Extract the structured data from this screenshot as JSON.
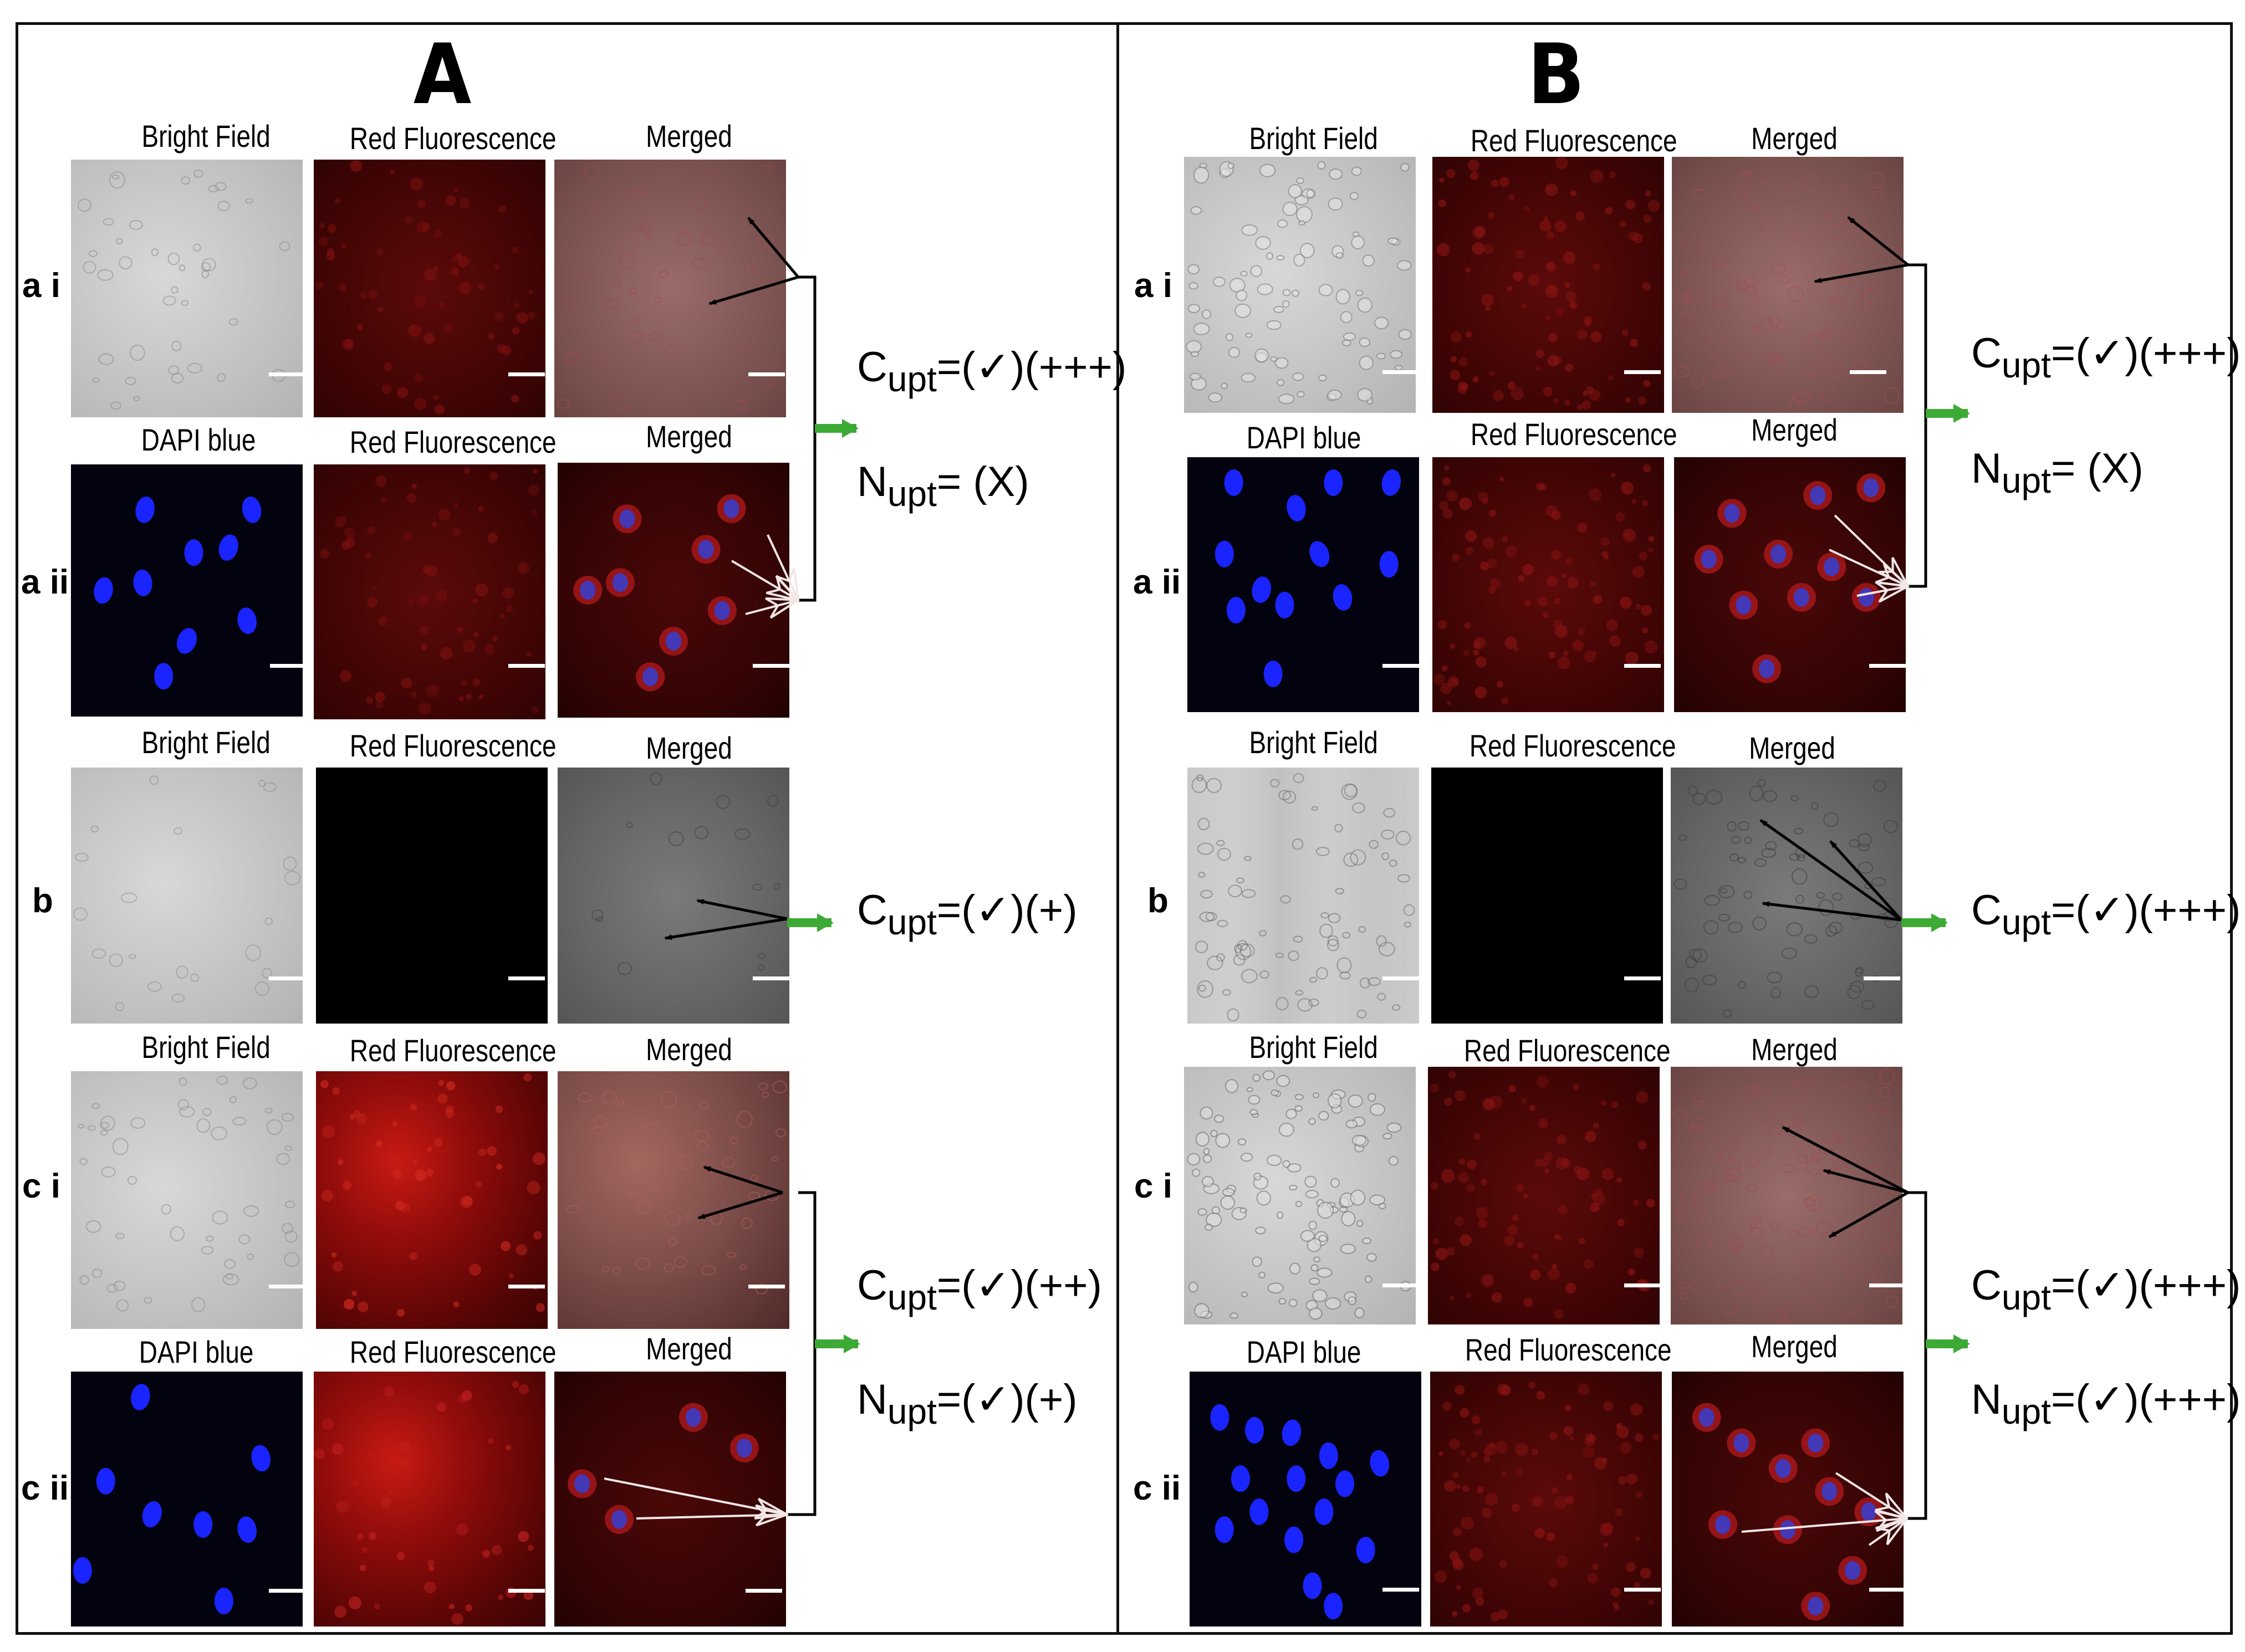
{
  "sections": [
    {
      "heading": "A",
      "rows": {
        "ai": {
          "label": "a i",
          "titles": [
            "Bright Field",
            "Red Fluorescence",
            "Merged"
          ]
        },
        "aii": {
          "label": "a ii",
          "titles": [
            "DAPI blue",
            "Red Fluorescence",
            "Merged"
          ]
        },
        "b": {
          "label": "b",
          "titles": [
            "Bright Field",
            "Red Fluorescence",
            "Merged"
          ]
        },
        "ci": {
          "label": "c i",
          "titles": [
            "Bright Field",
            "Red Fluorescence",
            "Merged"
          ]
        },
        "cii": {
          "label": "c ii",
          "titles": [
            "DAPI blue",
            "Red Fluorescence",
            "Merged"
          ]
        }
      },
      "annotations": {
        "a": {
          "c_main": "C",
          "c_sub": "upt",
          "c_value": "=(✓)(+++)",
          "n_main": "N",
          "n_sub": "upt",
          "n_value": "=    (X)"
        },
        "b": {
          "c_main": "C",
          "c_sub": "upt",
          "c_value": "=(✓)(+)"
        },
        "c": {
          "c_main": "C",
          "c_sub": "upt",
          "c_value": "=(✓)(++)",
          "n_main": "N",
          "n_sub": "upt",
          "n_value": "=(✓)(+)"
        }
      }
    },
    {
      "heading": "B",
      "rows": {
        "ai": {
          "label": "a i",
          "titles": [
            "Bright Field",
            "Red Fluorescence",
            "Merged"
          ]
        },
        "aii": {
          "label": "a ii",
          "titles": [
            "DAPI blue",
            "Red Fluorescence",
            "Merged"
          ]
        },
        "b": {
          "label": "b",
          "titles": [
            "Bright Field",
            "Red Fluorescence",
            "Merged"
          ]
        },
        "ci": {
          "label": "c i",
          "titles": [
            "Bright Field",
            "Red Fluorescence",
            "Merged"
          ]
        },
        "cii": {
          "label": "c ii",
          "titles": [
            "DAPI blue",
            "Red Fluorescence",
            "Merged"
          ]
        }
      },
      "annotations": {
        "a": {
          "c_main": "C",
          "c_sub": "upt",
          "c_value": "=(✓)(+++)",
          "n_main": "N",
          "n_sub": "upt",
          "n_value": "=    (X)"
        },
        "b": {
          "c_main": "C",
          "c_sub": "upt",
          "c_value": "=(✓)(+++)"
        },
        "c": {
          "c_main": "C",
          "c_sub": "upt",
          "c_value": "=(✓)(+++)",
          "n_main": "N",
          "n_sub": "upt",
          "n_value": "=(✓)(+++)"
        }
      }
    }
  ],
  "colors": {
    "border": "#111111",
    "arrow_black": "#000000",
    "arrow_white": "#f2e6e6",
    "green_arrow": "#3daa35",
    "dapi_nucleus": "#1a24ff",
    "scale_bar": "#ffffff"
  }
}
